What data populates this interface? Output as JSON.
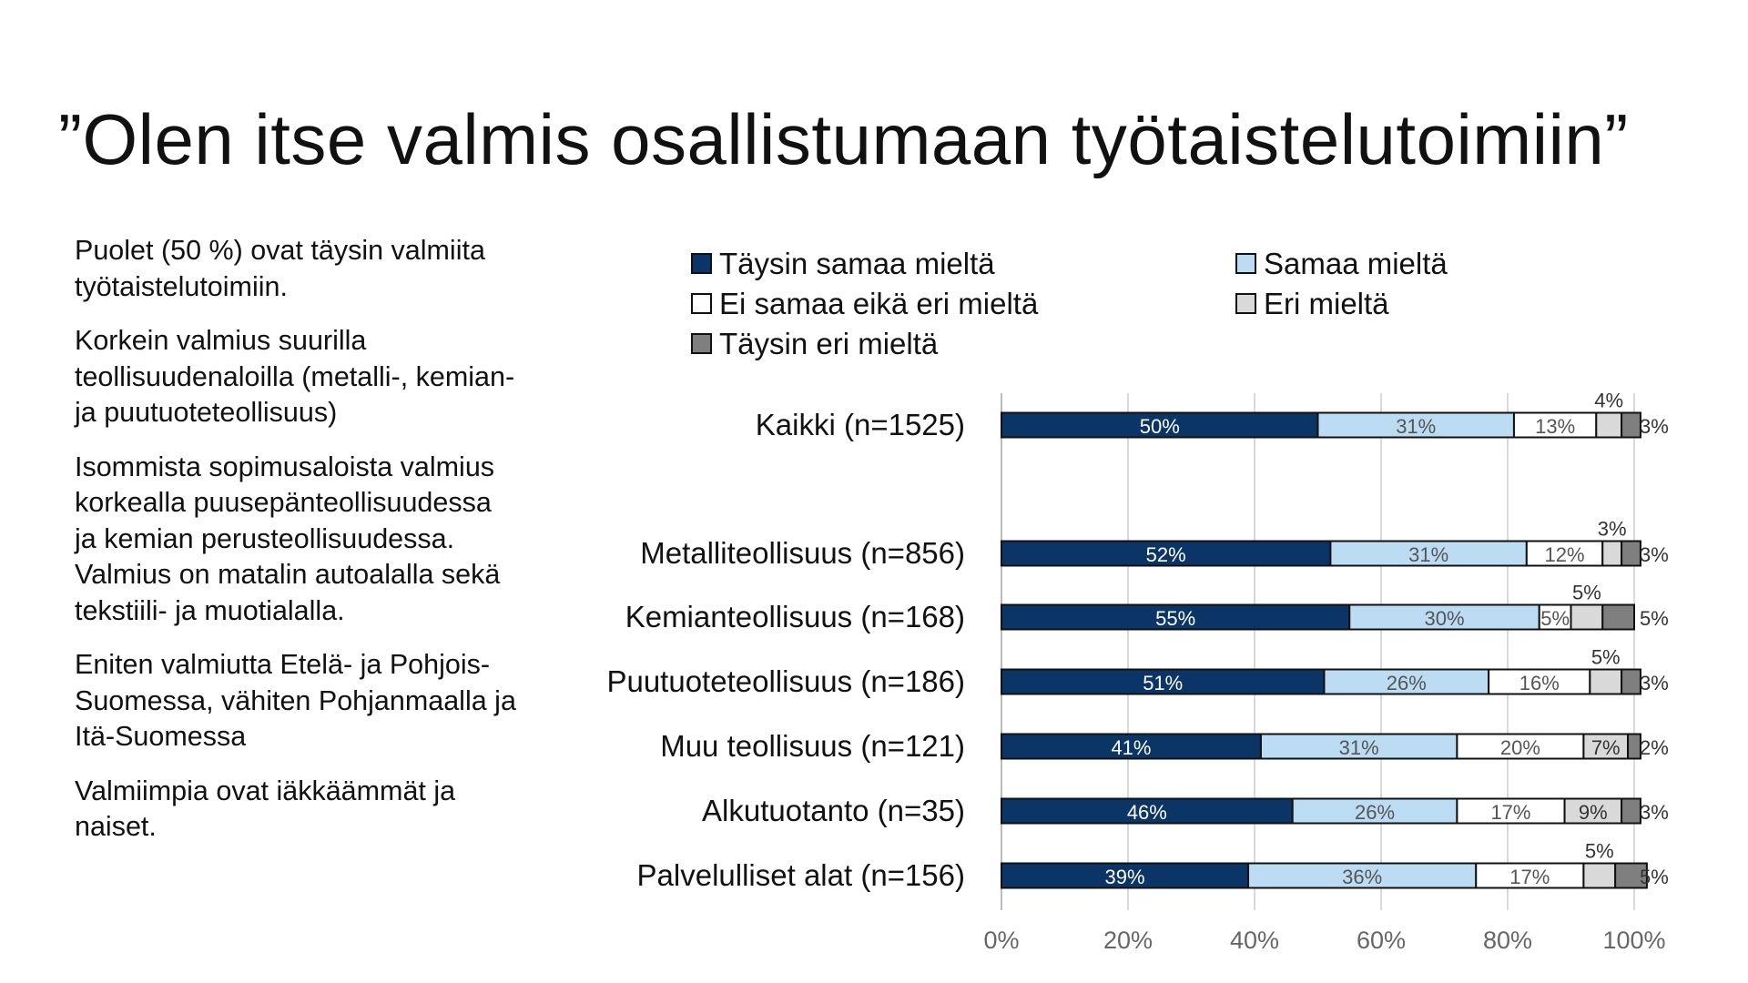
{
  "slide": {
    "title": "”Olen itse valmis osallistumaan työtaistelutoimiin”",
    "bullets": [
      "Puolet (50 %) ovat täysin valmiita työtaistelutoimiin.",
      "Korkein valmius suurilla teollisuudenaloilla (metalli-, kemian- ja puutuoteteollisuus)",
      "Isommista sopimusaloista valmius korkealla puusepänteollisuudessa ja kemian perusteollisuudessa. Valmius on matalin autoalalla sekä tekstiili- ja muotialalla.",
      "Eniten valmiutta Etelä- ja Pohjois-Suomessa, vähiten Pohjanmaalla ja Itä-Suomessa",
      "Valmiimpia ovat iäkkäämmät ja naiset."
    ]
  },
  "chart_data": {
    "type": "bar",
    "orientation": "horizontal",
    "stacked": true,
    "percent_stacked": true,
    "categories": [
      "Kaikki (n=1525)",
      "Metalliteollisuus (n=856)",
      "Kemianteollisuus (n=168)",
      "Puutuoteteollisuus (n=186)",
      "Muu teollisuus (n=121)",
      "Alkutuotanto (n=35)",
      "Palvelulliset alat (n=156)"
    ],
    "series": [
      {
        "name": "Täysin samaa mieltä",
        "color": "#0b3566",
        "label_color": "#ffffff",
        "values": [
          50,
          52,
          55,
          51,
          41,
          46,
          39
        ]
      },
      {
        "name": "Samaa mieltä",
        "color": "#bcdcf4",
        "label_color": "#555555",
        "values": [
          31,
          31,
          30,
          26,
          31,
          26,
          36
        ]
      },
      {
        "name": "Ei samaa eikä eri mieltä",
        "color": "#ffffff",
        "label_color": "#555555",
        "values": [
          13,
          12,
          5,
          16,
          20,
          17,
          17
        ]
      },
      {
        "name": "Eri mieltä",
        "color": "#d9d9d9",
        "label_color": "#333333",
        "values": [
          4,
          3,
          5,
          5,
          7,
          9,
          5
        ]
      },
      {
        "name": "Täysin eri mieltä",
        "color": "#7f7f7f",
        "label_color": "#333333",
        "values": [
          3,
          3,
          5,
          3,
          2,
          3,
          5
        ]
      }
    ],
    "segment_labels": [
      [
        "50%",
        "31%",
        "13%",
        "4%",
        "3%"
      ],
      [
        "52%",
        "31%",
        "12%",
        "3%",
        "3%"
      ],
      [
        "55%",
        "30%",
        "5%",
        "5%",
        "5%"
      ],
      [
        "51%",
        "26%",
        "16%",
        "5%",
        "3%"
      ],
      [
        "41%",
        "31%",
        "20%",
        "7%",
        "2%"
      ],
      [
        "46%",
        "26%",
        "17%",
        "9%",
        "3%"
      ],
      [
        "39%",
        "36%",
        "17%",
        "5%",
        "5%"
      ]
    ],
    "x_ticks": [
      "0%",
      "20%",
      "40%",
      "60%",
      "80%",
      "100%"
    ],
    "xlim": [
      0,
      100
    ],
    "grid": true,
    "legend_position": "top"
  }
}
